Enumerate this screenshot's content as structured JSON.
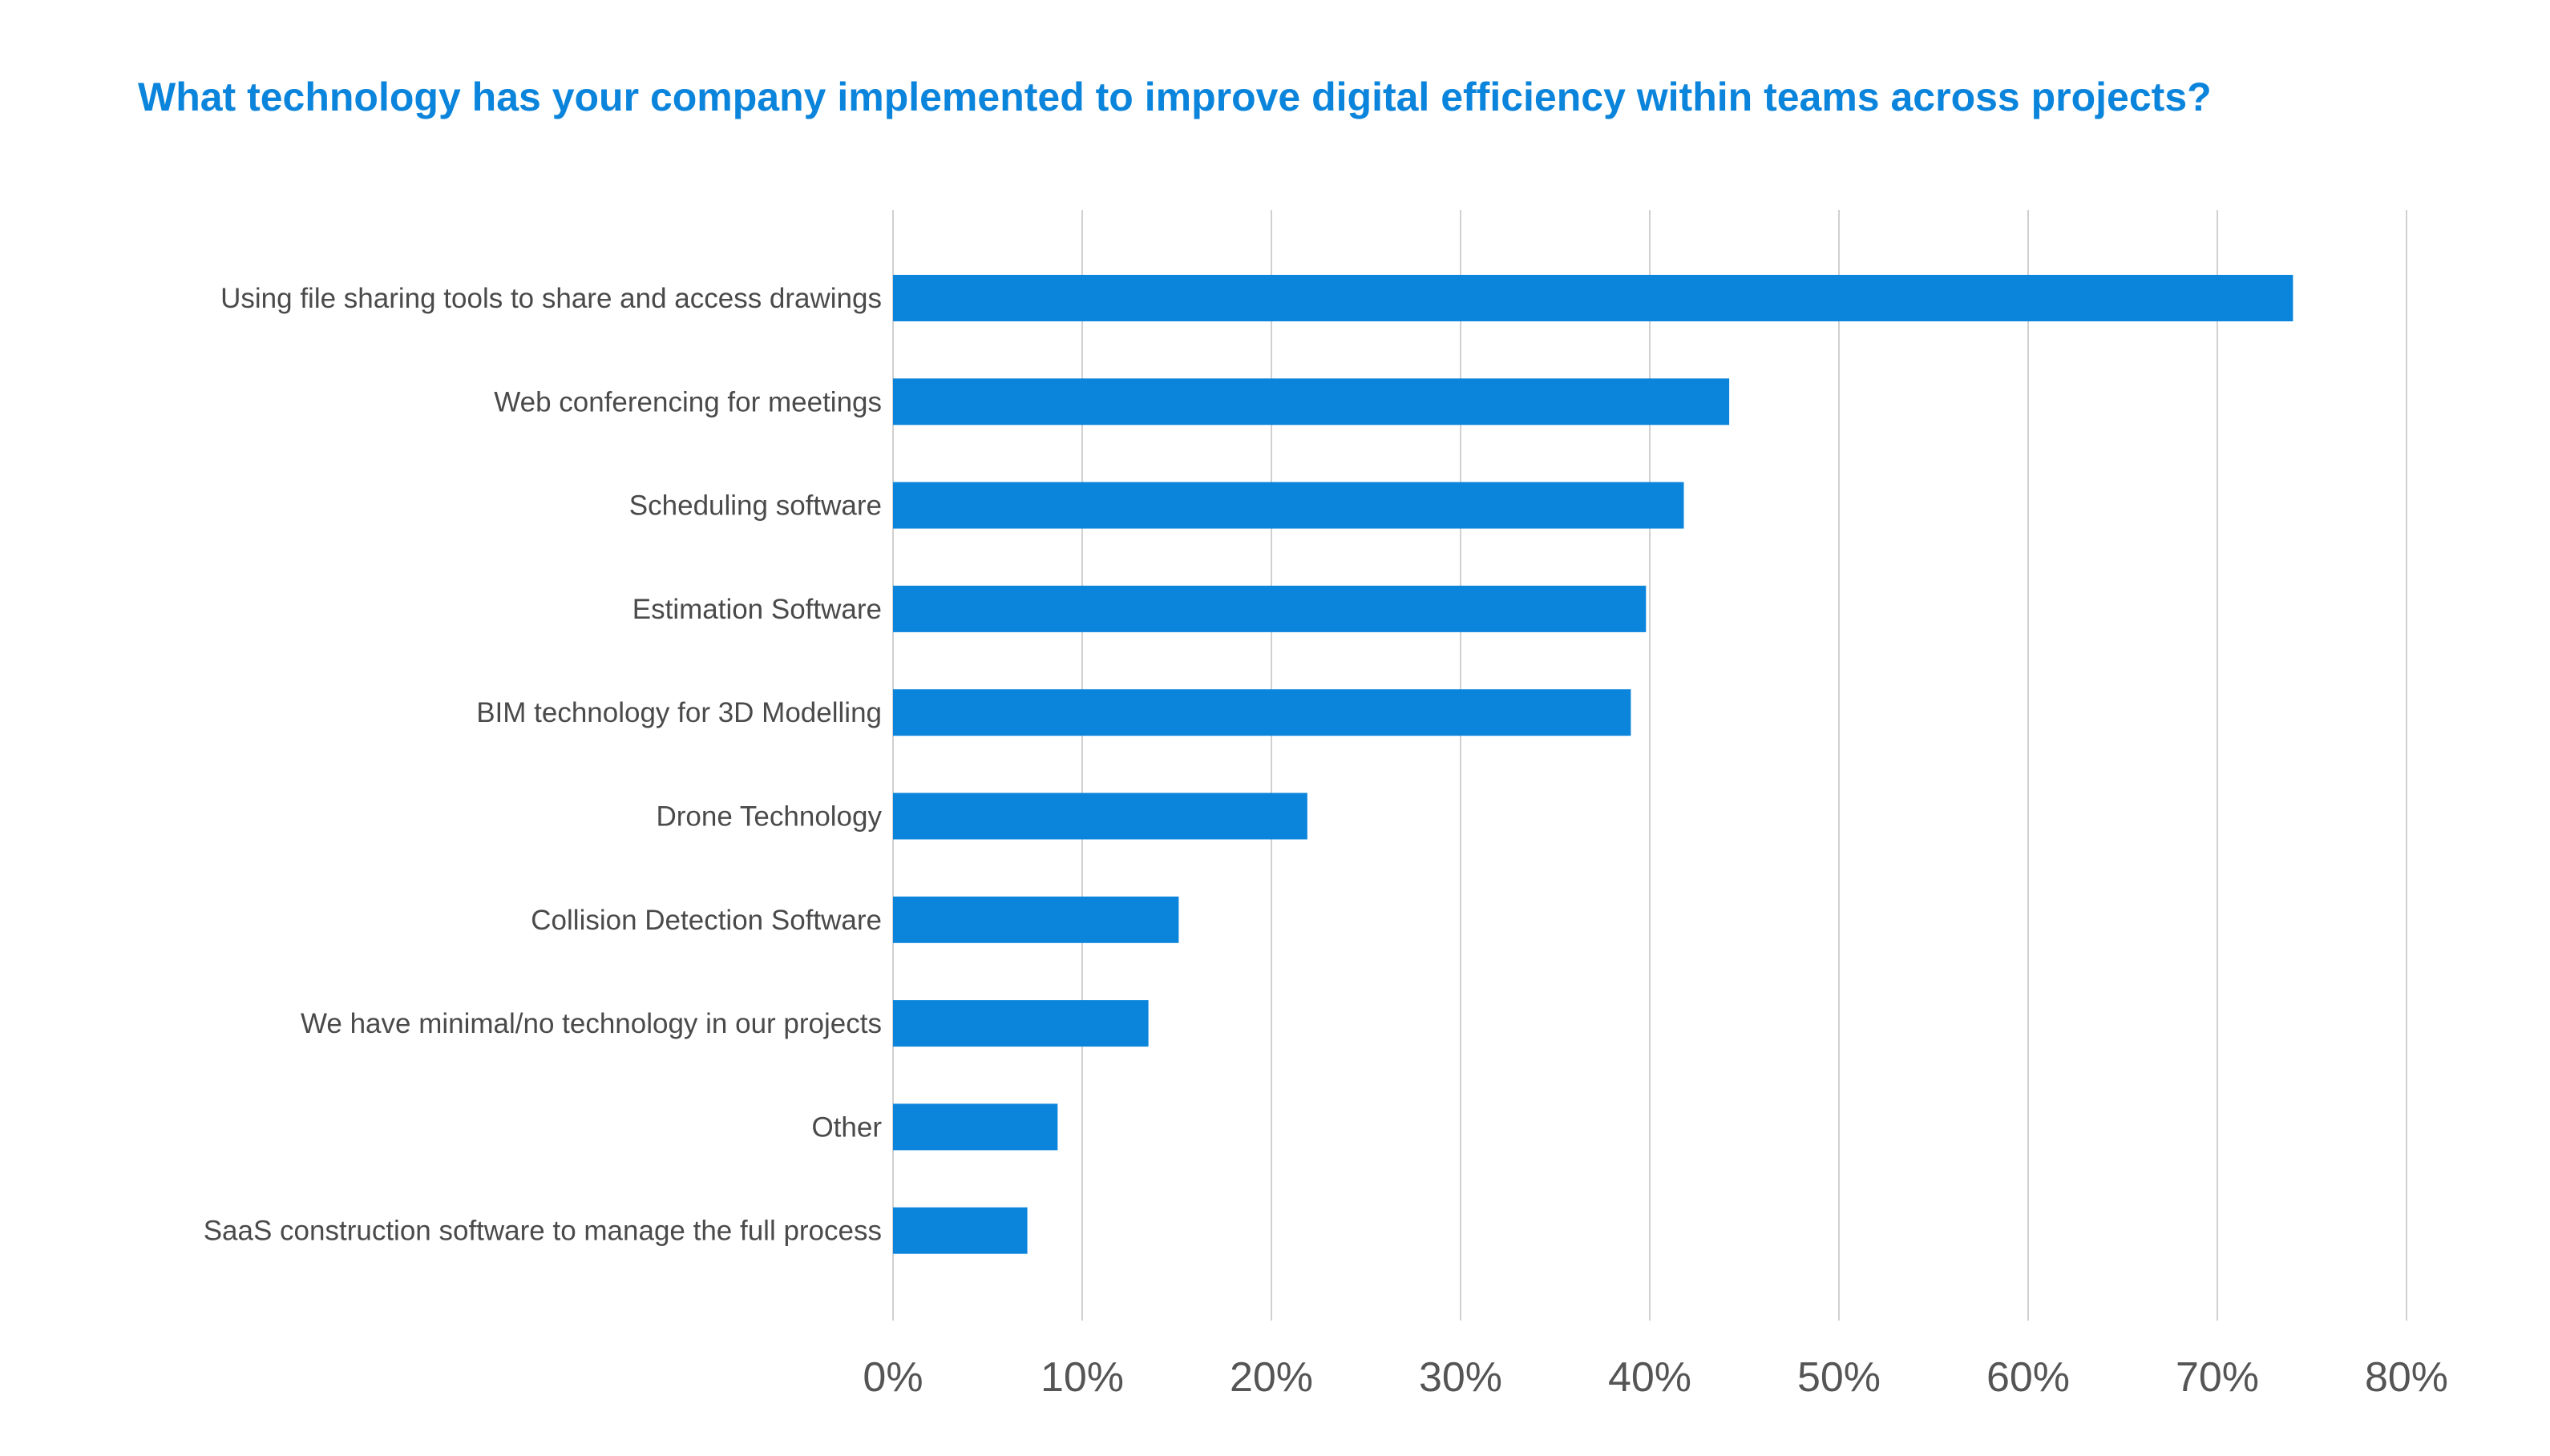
{
  "chart_data": {
    "type": "bar",
    "orientation": "horizontal",
    "title": "What technology has your company implemented to improve digital efficiency within teams across projects?",
    "xlabel": "",
    "ylabel": "",
    "categories": [
      "Using file sharing tools to share and access drawings",
      "Web conferencing for meetings",
      "Scheduling software",
      "Estimation Software",
      "BIM technology for 3D Modelling",
      "Drone Technology",
      "Collision Detection Software",
      "We have minimal/no technology in our projects",
      "Other",
      "SaaS construction software to manage the full process"
    ],
    "values": [
      74,
      44.2,
      41.8,
      39.8,
      39,
      21.9,
      15.1,
      13.5,
      8.7,
      7.1
    ],
    "xlim": [
      0,
      80
    ],
    "x_ticks": [
      0,
      10,
      20,
      30,
      40,
      50,
      60,
      70,
      80
    ],
    "x_tick_labels": [
      "0%",
      "10%",
      "20%",
      "30%",
      "40%",
      "50%",
      "60%",
      "70%",
      "80%"
    ],
    "grid": "vertical",
    "legend": "none",
    "colors": {
      "bar": "#0B84DC",
      "title": "#0B84DC",
      "grid": "#d0d0d0",
      "label": "#4a4a4a"
    }
  }
}
